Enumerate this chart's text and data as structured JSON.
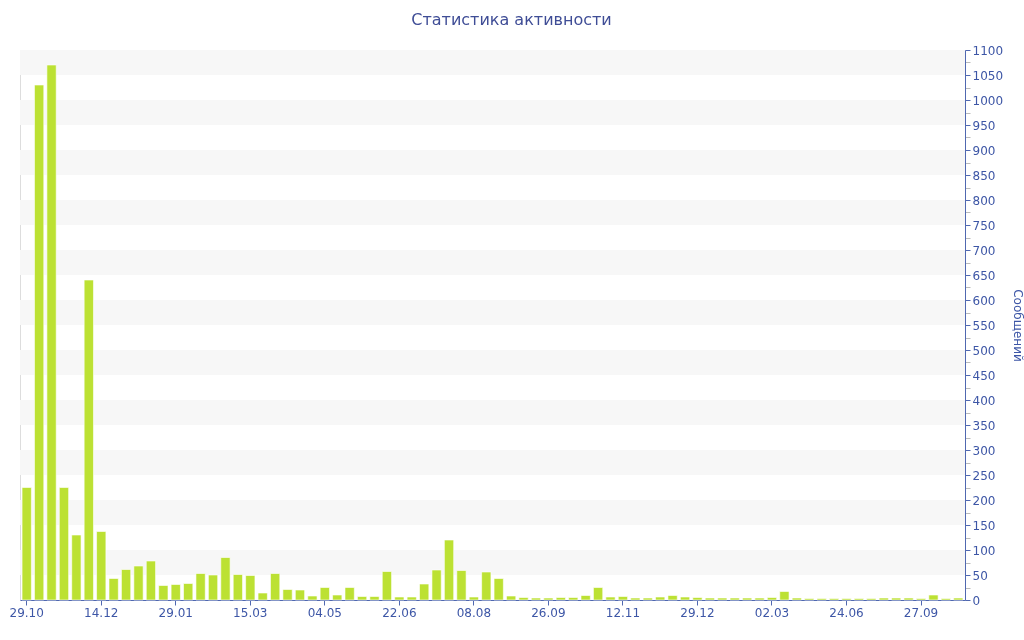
{
  "chart_data": {
    "type": "bar",
    "title": "Статистика активности",
    "ylabel": "Сообщений",
    "categories": [
      "29.10",
      null,
      null,
      null,
      null,
      null,
      "14.12",
      null,
      null,
      null,
      null,
      null,
      "29.01",
      null,
      null,
      null,
      null,
      null,
      "15.03",
      null,
      null,
      null,
      null,
      null,
      "04.05",
      null,
      null,
      null,
      null,
      null,
      "22.06",
      null,
      null,
      null,
      null,
      null,
      "08.08",
      null,
      null,
      null,
      null,
      null,
      "26.09",
      null,
      null,
      null,
      null,
      null,
      "12.11",
      null,
      null,
      null,
      null,
      null,
      "29.12",
      null,
      null,
      null,
      null,
      null,
      "02.03",
      null,
      null,
      null,
      null,
      null,
      "24.06",
      null,
      null,
      null,
      null,
      null,
      "27.09",
      null,
      null,
      null
    ],
    "values": [
      225,
      1030,
      1070,
      225,
      130,
      640,
      137,
      43,
      61,
      68,
      78,
      29,
      31,
      33,
      53,
      50,
      85,
      51,
      49,
      14,
      53,
      21,
      20,
      8,
      25,
      10,
      25,
      7,
      7,
      57,
      6,
      6,
      32,
      60,
      120,
      59,
      6,
      56,
      43,
      8,
      5,
      4,
      4,
      5,
      5,
      9,
      25,
      6,
      7,
      4,
      4,
      6,
      9,
      6,
      5,
      4,
      4,
      4,
      4,
      4,
      5,
      17,
      4,
      3,
      3,
      3,
      3,
      3,
      3,
      4,
      4,
      4,
      3,
      10,
      3,
      4
    ],
    "color": "#bce133",
    "ylim": [
      0,
      1100
    ],
    "yticks": [
      0,
      {
        "value": 25,
        "label": null
      },
      50,
      {
        "value": 75,
        "label": null
      },
      100,
      {
        "value": 125,
        "label": null
      },
      150,
      {
        "value": 175,
        "label": null
      },
      200,
      {
        "value": 225,
        "label": null
      },
      250,
      {
        "value": 275,
        "label": null
      },
      300,
      {
        "value": 325,
        "label": null
      },
      350,
      {
        "value": 375,
        "label": null
      },
      400,
      {
        "value": 425,
        "label": null
      },
      450,
      {
        "value": 475,
        "label": null
      },
      500,
      {
        "value": 525,
        "label": null
      },
      550,
      {
        "value": 575,
        "label": null
      },
      600,
      {
        "value": 625,
        "label": null
      },
      650,
      {
        "value": 675,
        "label": null
      },
      700,
      {
        "value": 725,
        "label": null
      },
      750,
      {
        "value": 775,
        "label": null
      },
      800,
      {
        "value": 825,
        "label": null
      },
      850,
      {
        "value": 875,
        "label": null
      },
      900,
      {
        "value": 925,
        "label": null
      },
      950,
      {
        "value": 975,
        "label": null
      },
      1000,
      {
        "value": 1025,
        "label": null
      },
      1050,
      {
        "value": 1075,
        "label": null
      },
      1100
    ],
    "bands": [
      {
        "axis": "y",
        "from": 50,
        "to": 100,
        "color": "#f7f7f7"
      },
      {
        "axis": "y",
        "from": 150,
        "to": 200,
        "color": "#f7f7f7"
      },
      {
        "axis": "y",
        "from": 250,
        "to": 300,
        "color": "#f7f7f7"
      },
      {
        "axis": "y",
        "from": 350,
        "to": 400,
        "color": "#f7f7f7"
      },
      {
        "axis": "y",
        "from": 450,
        "to": 500,
        "color": "#f7f7f7"
      },
      {
        "axis": "y",
        "from": 550,
        "to": 600,
        "color": "#f7f7f7"
      },
      {
        "axis": "y",
        "from": 650,
        "to": 700,
        "color": "#f7f7f7"
      },
      {
        "axis": "y",
        "from": 750,
        "to": 800,
        "color": "#f7f7f7"
      },
      {
        "axis": "y",
        "from": 850,
        "to": 900,
        "color": "#f7f7f7"
      },
      {
        "axis": "y",
        "from": 950,
        "to": 1000,
        "color": "#f7f7f7"
      },
      {
        "axis": "y",
        "from": 1050,
        "to": 1100,
        "color": "#f7f7f7"
      }
    ]
  }
}
